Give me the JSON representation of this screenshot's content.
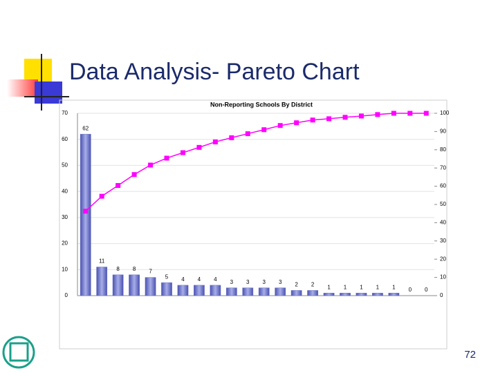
{
  "slide": {
    "title": "Data Analysis- Pareto Chart",
    "page_number": "72"
  },
  "chart_data": {
    "type": "pareto",
    "title": "Non-Reporting Schools By District",
    "categories": [
      null,
      null,
      null,
      null,
      null,
      null,
      null,
      null,
      null,
      null,
      null,
      null,
      null,
      null,
      null,
      null,
      null,
      null,
      null,
      null,
      null,
      null
    ],
    "series": [
      {
        "color": "#6a72c6",
        "values": [
          62,
          11,
          8,
          8,
          7,
          5,
          4,
          4,
          4,
          3,
          3,
          3,
          3,
          2,
          2,
          1,
          1,
          1,
          1,
          1,
          0,
          0
        ]
      },
      {
        "color": "#ff00ff",
        "axis": "y2",
        "values": [
          46.3,
          54.5,
          60.4,
          66.4,
          71.6,
          75.4,
          78.4,
          81.3,
          84.3,
          86.6,
          88.8,
          91.0,
          93.3,
          94.8,
          96.3,
          97.0,
          97.8,
          98.5,
          99.3,
          100,
          100,
          100
        ]
      }
    ],
    "ylim": [
      0,
      70
    ],
    "yticks": [
      0,
      10,
      20,
      30,
      40,
      50,
      60,
      70
    ],
    "y2lim": [
      0,
      100
    ],
    "y2ticks": [
      0,
      10,
      20,
      30,
      40,
      50,
      60,
      70,
      80,
      90,
      100
    ],
    "grid": true
  }
}
